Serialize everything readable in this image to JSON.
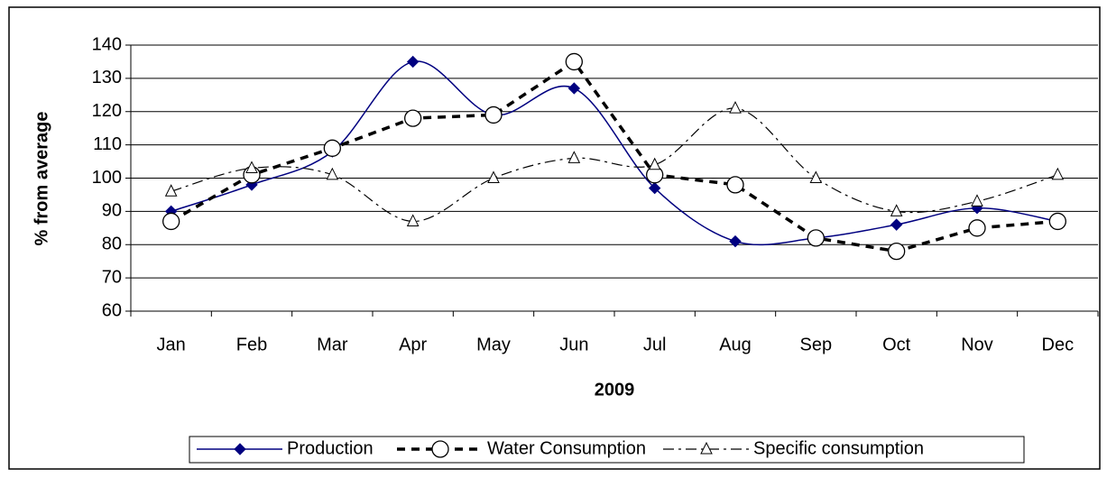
{
  "chart_data": {
    "type": "line",
    "x_label": "2009",
    "y_label": "% from average",
    "categories": [
      "Jan",
      "Feb",
      "Mar",
      "Apr",
      "May",
      "Jun",
      "Jul",
      "Aug",
      "Sep",
      "Oct",
      "Nov",
      "Dec"
    ],
    "series": [
      {
        "name": "Production",
        "color": "#000080",
        "line_style": "solid",
        "marker": "diamond",
        "smooth": true,
        "values": [
          90,
          98,
          108,
          135,
          119,
          127,
          97,
          81,
          82,
          86,
          91,
          87
        ]
      },
      {
        "name": "Water Consumption",
        "color": "#000000",
        "line_style": "dashed",
        "marker": "circle",
        "smooth": false,
        "values": [
          87,
          101,
          109,
          118,
          119,
          135,
          101,
          98,
          82,
          78,
          85,
          87
        ]
      },
      {
        "name": "Specific consumption",
        "color": "#000000",
        "line_style": "dashdot",
        "marker": "triangle",
        "smooth": true,
        "values": [
          96,
          103,
          101,
          87,
          100,
          106,
          104,
          121,
          100,
          90,
          93,
          101
        ]
      }
    ],
    "ylim": [
      60,
      140
    ],
    "yticks": [
      60,
      70,
      80,
      90,
      100,
      110,
      120,
      130,
      140
    ],
    "grid": true,
    "legend": "bottom"
  }
}
